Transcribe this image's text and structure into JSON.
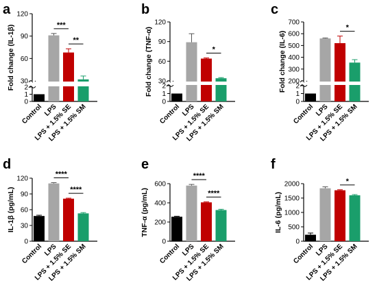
{
  "colors": {
    "Control": "#000000",
    "LPS": "#a6a6a6",
    "LPS + 1.5% SE": "#c00000",
    "LPS + 1.5% SM": "#1a9e6b"
  },
  "chart_data": [
    {
      "panel": "a",
      "type": "bar",
      "ylabel": "Fold change (IL-1β)",
      "categories": [
        "Control",
        "LPS",
        "LPS + 1.5% SE",
        "LPS + 1.5% SM"
      ],
      "values": [
        1,
        91,
        68,
        32
      ],
      "errors": [
        0,
        2.5,
        5,
        4.5
      ],
      "broken_axis": true,
      "lower_ticks": [
        0,
        1,
        2
      ],
      "upper_ticks": [
        30,
        60,
        90,
        120
      ],
      "significance": [
        {
          "from": 1,
          "to": 2,
          "label": "***"
        },
        {
          "from": 2,
          "to": 3,
          "label": "**"
        }
      ]
    },
    {
      "panel": "b",
      "type": "bar",
      "ylabel": "Fold change (TNF-α)",
      "categories": [
        "Control",
        "LPS",
        "LPS + 1.5% SE",
        "LPS + 1.5% SM"
      ],
      "values": [
        1,
        89,
        64,
        34
      ],
      "errors": [
        0,
        13,
        1,
        1
      ],
      "broken_axis": true,
      "lower_ticks": [
        0,
        1,
        2
      ],
      "upper_ticks": [
        30,
        60,
        90,
        120
      ],
      "significance": [
        {
          "from": 2,
          "to": 3,
          "label": "*"
        }
      ]
    },
    {
      "panel": "c",
      "type": "bar",
      "ylabel": "Fold change (IL-6)",
      "categories": [
        "Control",
        "LPS",
        "LPS + 1.5% SE",
        "LPS + 1.5% SM"
      ],
      "values": [
        1,
        560,
        520,
        355
      ],
      "errors": [
        0,
        4,
        60,
        25
      ],
      "broken_axis": true,
      "lower_ticks": [
        0,
        1,
        2
      ],
      "upper_ticks": [
        200,
        300,
        400,
        500,
        600,
        700
      ],
      "significance": [
        {
          "from": 2,
          "to": 3,
          "label": "*"
        }
      ]
    },
    {
      "panel": "d",
      "type": "bar",
      "ylabel": "IL-1β (pg/mL)",
      "categories": [
        "Control",
        "LPS",
        "LPS + 1.5% SE",
        "LPS + 1.5% SM"
      ],
      "values": [
        48,
        110,
        81,
        53
      ],
      "errors": [
        1.5,
        1.5,
        1,
        1.5
      ],
      "ylim": [
        0,
        120
      ],
      "ticks": [
        0,
        30,
        60,
        90,
        120
      ],
      "significance": [
        {
          "from": 1,
          "to": 2,
          "label": "****"
        },
        {
          "from": 2,
          "to": 3,
          "label": "****"
        }
      ]
    },
    {
      "panel": "e",
      "type": "bar",
      "ylabel": "TNF-α (pg/mL)",
      "categories": [
        "Control",
        "LPS",
        "LPS + 1.5% SE",
        "LPS + 1.5% SM"
      ],
      "values": [
        255,
        580,
        405,
        325
      ],
      "errors": [
        5,
        12,
        5,
        8
      ],
      "ylim": [
        0,
        600
      ],
      "ticks": [
        0,
        200,
        400,
        600
      ],
      "significance": [
        {
          "from": 1,
          "to": 2,
          "label": "****"
        },
        {
          "from": 2,
          "to": 3,
          "label": "****"
        }
      ]
    },
    {
      "panel": "f",
      "type": "bar",
      "ylabel": "IL-6 (pg/mL)",
      "categories": [
        "Control",
        "LPS",
        "LPS + 1.5% SE",
        "LPS + 1.5% SM"
      ],
      "values": [
        225,
        1840,
        1770,
        1595
      ],
      "errors": [
        60,
        50,
        20,
        25
      ],
      "ylim": [
        0,
        2000
      ],
      "ticks": [
        0,
        500,
        1000,
        1500,
        2000
      ],
      "significance": [
        {
          "from": 2,
          "to": 3,
          "label": "*"
        }
      ]
    }
  ]
}
